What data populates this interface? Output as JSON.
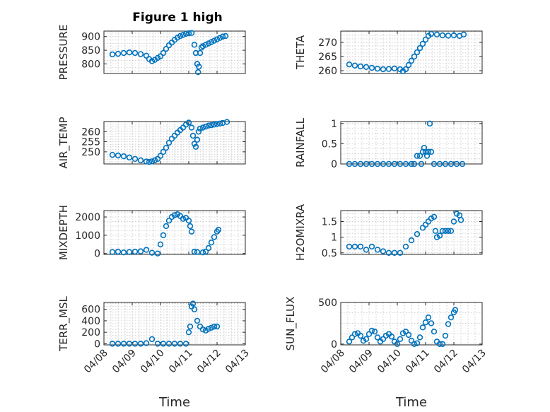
{
  "figure": {
    "title": "Figure 1 high",
    "marker_color": "#0072bd"
  },
  "chart_data": [
    {
      "type": "scatter",
      "id": "pressure",
      "ylabel": "PRESSURE",
      "xlabel": "",
      "ylim": [
        765,
        920
      ],
      "yticks": [
        800,
        850,
        900
      ],
      "xlim": [
        "04/08",
        "04/13"
      ],
      "xticks": [
        "04/08",
        "04/09",
        "04/10",
        "04/11",
        "04/12",
        "04/13"
      ],
      "xticklabels_visible": false,
      "grid": true,
      "points": [
        [
          8.3,
          835
        ],
        [
          8.5,
          837
        ],
        [
          8.7,
          840
        ],
        [
          8.9,
          842
        ],
        [
          9.1,
          840
        ],
        [
          9.3,
          836
        ],
        [
          9.5,
          830
        ],
        [
          9.6,
          818
        ],
        [
          9.7,
          810
        ],
        [
          9.8,
          815
        ],
        [
          9.9,
          822
        ],
        [
          10.0,
          828
        ],
        [
          10.1,
          840
        ],
        [
          10.2,
          855
        ],
        [
          10.3,
          868
        ],
        [
          10.4,
          878
        ],
        [
          10.5,
          888
        ],
        [
          10.6,
          896
        ],
        [
          10.7,
          902
        ],
        [
          10.8,
          906
        ],
        [
          10.9,
          910
        ],
        [
          11.0,
          912
        ],
        [
          11.1,
          913
        ],
        [
          11.2,
          870
        ],
        [
          11.25,
          840
        ],
        [
          11.3,
          800
        ],
        [
          11.33,
          770
        ],
        [
          11.36,
          790
        ],
        [
          11.4,
          840
        ],
        [
          11.45,
          860
        ],
        [
          11.5,
          865
        ],
        [
          11.6,
          870
        ],
        [
          11.7,
          875
        ],
        [
          11.8,
          880
        ],
        [
          11.9,
          885
        ],
        [
          12.0,
          890
        ],
        [
          12.1,
          895
        ],
        [
          12.2,
          900
        ],
        [
          12.3,
          902
        ]
      ]
    },
    {
      "type": "scatter",
      "id": "theta",
      "ylabel": "THETA",
      "xlabel": "",
      "ylim": [
        259,
        274
      ],
      "yticks": [
        260,
        265,
        270
      ],
      "xlim": [
        "04/08",
        "04/13"
      ],
      "xticks": [
        "04/08",
        "04/09",
        "04/10",
        "04/11",
        "04/12",
        "04/13"
      ],
      "xticklabels_visible": false,
      "grid": true,
      "points": [
        [
          8.3,
          262.2
        ],
        [
          8.5,
          261.8
        ],
        [
          8.7,
          261.5
        ],
        [
          8.9,
          261.3
        ],
        [
          9.1,
          261.0
        ],
        [
          9.3,
          260.7
        ],
        [
          9.5,
          260.5
        ],
        [
          9.7,
          260.6
        ],
        [
          9.9,
          260.8
        ],
        [
          10.1,
          260.5
        ],
        [
          10.2,
          259.8
        ],
        [
          10.3,
          260.5
        ],
        [
          10.4,
          262.0
        ],
        [
          10.5,
          263.5
        ],
        [
          10.6,
          265.0
        ],
        [
          10.7,
          266.5
        ],
        [
          10.8,
          268.0
        ],
        [
          10.9,
          269.5
        ],
        [
          11.0,
          271.0
        ],
        [
          11.1,
          272.3
        ],
        [
          11.2,
          273.0
        ],
        [
          11.4,
          272.8
        ],
        [
          11.6,
          272.5
        ],
        [
          11.8,
          272.4
        ],
        [
          12.0,
          272.5
        ],
        [
          12.2,
          272.3
        ],
        [
          12.35,
          272.8
        ]
      ]
    },
    {
      "type": "scatter",
      "id": "air_temp",
      "ylabel": "AIR_TEMP",
      "xlabel": "",
      "ylim": [
        244,
        265
      ],
      "yticks": [
        250,
        255,
        260
      ],
      "xlim": [
        "04/08",
        "04/13"
      ],
      "xticks": [
        "04/08",
        "04/09",
        "04/10",
        "04/11",
        "04/12",
        "04/13"
      ],
      "xticklabels_visible": false,
      "grid": true,
      "points": [
        [
          8.3,
          248.5
        ],
        [
          8.5,
          248.2
        ],
        [
          8.7,
          247.8
        ],
        [
          8.9,
          247.2
        ],
        [
          9.1,
          246.5
        ],
        [
          9.3,
          245.8
        ],
        [
          9.5,
          245.2
        ],
        [
          9.6,
          245.0
        ],
        [
          9.7,
          245.3
        ],
        [
          9.8,
          245.8
        ],
        [
          9.9,
          246.5
        ],
        [
          10.0,
          248.0
        ],
        [
          10.1,
          250.0
        ],
        [
          10.2,
          252.0
        ],
        [
          10.3,
          254.5
        ],
        [
          10.4,
          256.5
        ],
        [
          10.5,
          258.0
        ],
        [
          10.6,
          259.5
        ],
        [
          10.7,
          260.8
        ],
        [
          10.8,
          262.0
        ],
        [
          10.9,
          263.5
        ],
        [
          11.0,
          264.5
        ],
        [
          11.1,
          262.0
        ],
        [
          11.15,
          258.0
        ],
        [
          11.2,
          254.0
        ],
        [
          11.25,
          252.5
        ],
        [
          11.3,
          256.0
        ],
        [
          11.35,
          260.0
        ],
        [
          11.4,
          261.5
        ],
        [
          11.5,
          262.0
        ],
        [
          11.6,
          262.5
        ],
        [
          11.7,
          263.0
        ],
        [
          11.8,
          263.2
        ],
        [
          11.9,
          263.5
        ],
        [
          12.0,
          263.8
        ],
        [
          12.1,
          264.0
        ],
        [
          12.2,
          264.3
        ],
        [
          12.35,
          264.8
        ]
      ]
    },
    {
      "type": "scatter",
      "id": "rainfall",
      "ylabel": "RAINFALL",
      "xlabel": "",
      "ylim": [
        0,
        1.05
      ],
      "yticks": [
        0,
        0.5,
        1
      ],
      "xlim": [
        "04/08",
        "04/13"
      ],
      "xticks": [
        "04/08",
        "04/09",
        "04/10",
        "04/11",
        "04/12",
        "04/13"
      ],
      "xticklabels_visible": false,
      "grid": true,
      "points": [
        [
          8.3,
          0
        ],
        [
          8.5,
          0
        ],
        [
          8.7,
          0
        ],
        [
          8.9,
          0
        ],
        [
          9.1,
          0
        ],
        [
          9.3,
          0
        ],
        [
          9.5,
          0
        ],
        [
          9.7,
          0
        ],
        [
          9.9,
          0
        ],
        [
          10.1,
          0
        ],
        [
          10.3,
          0
        ],
        [
          10.5,
          0
        ],
        [
          10.6,
          0
        ],
        [
          10.7,
          0.2
        ],
        [
          10.8,
          0.2
        ],
        [
          10.85,
          0
        ],
        [
          10.9,
          0.3
        ],
        [
          10.95,
          0.4
        ],
        [
          11.0,
          0.3
        ],
        [
          11.05,
          0.2
        ],
        [
          11.1,
          0.3
        ],
        [
          11.15,
          1.0
        ],
        [
          11.2,
          0.3
        ],
        [
          11.3,
          0
        ],
        [
          11.5,
          0
        ],
        [
          11.7,
          0
        ],
        [
          11.9,
          0
        ],
        [
          12.1,
          0
        ],
        [
          12.3,
          0
        ]
      ]
    },
    {
      "type": "scatter",
      "id": "mixdepth",
      "ylabel": "MIXDEPTH",
      "xlabel": "",
      "ylim": [
        -50,
        2350
      ],
      "yticks": [
        0,
        1000,
        2000
      ],
      "xlim": [
        "04/08",
        "04/13"
      ],
      "xticks": [
        "04/08",
        "04/09",
        "04/10",
        "04/11",
        "04/12",
        "04/13"
      ],
      "xticklabels_visible": false,
      "grid": true,
      "points": [
        [
          8.3,
          80
        ],
        [
          8.5,
          100
        ],
        [
          8.7,
          60
        ],
        [
          8.9,
          80
        ],
        [
          9.1,
          100
        ],
        [
          9.3,
          120
        ],
        [
          9.5,
          200
        ],
        [
          9.7,
          40
        ],
        [
          9.9,
          0
        ],
        [
          10.0,
          500
        ],
        [
          10.1,
          1000
        ],
        [
          10.2,
          1500
        ],
        [
          10.3,
          1800
        ],
        [
          10.4,
          2000
        ],
        [
          10.5,
          2100
        ],
        [
          10.6,
          2150
        ],
        [
          10.7,
          2050
        ],
        [
          10.8,
          1900
        ],
        [
          10.9,
          1950
        ],
        [
          11.0,
          1800
        ],
        [
          11.05,
          1500
        ],
        [
          11.1,
          1200
        ],
        [
          11.2,
          100
        ],
        [
          11.3,
          80
        ],
        [
          11.5,
          60
        ],
        [
          11.6,
          100
        ],
        [
          11.7,
          300
        ],
        [
          11.8,
          600
        ],
        [
          11.9,
          900
        ],
        [
          12.0,
          1200
        ],
        [
          12.05,
          1300
        ]
      ]
    },
    {
      "type": "scatter",
      "id": "h2omixra",
      "ylabel": "H2OMIXRA",
      "xlabel": "",
      "ylim": [
        0.45,
        1.85
      ],
      "yticks": [
        0.5,
        1,
        1.5
      ],
      "xlim": [
        "04/08",
        "04/13"
      ],
      "xticks": [
        "04/08",
        "04/09",
        "04/10",
        "04/11",
        "04/12",
        "04/13"
      ],
      "xticklabels_visible": false,
      "grid": true,
      "points": [
        [
          8.3,
          0.7
        ],
        [
          8.5,
          0.7
        ],
        [
          8.7,
          0.7
        ],
        [
          8.9,
          0.6
        ],
        [
          9.1,
          0.7
        ],
        [
          9.3,
          0.6
        ],
        [
          9.5,
          0.55
        ],
        [
          9.7,
          0.5
        ],
        [
          9.9,
          0.5
        ],
        [
          10.1,
          0.5
        ],
        [
          10.3,
          0.7
        ],
        [
          10.5,
          0.9
        ],
        [
          10.7,
          1.1
        ],
        [
          10.9,
          1.3
        ],
        [
          11.0,
          1.4
        ],
        [
          11.1,
          1.5
        ],
        [
          11.2,
          1.6
        ],
        [
          11.3,
          1.65
        ],
        [
          11.35,
          1.2
        ],
        [
          11.4,
          1.0
        ],
        [
          11.5,
          1.05
        ],
        [
          11.6,
          1.2
        ],
        [
          11.7,
          1.2
        ],
        [
          11.8,
          1.2
        ],
        [
          11.9,
          1.2
        ],
        [
          12.0,
          1.5
        ],
        [
          12.1,
          1.75
        ],
        [
          12.2,
          1.7
        ],
        [
          12.25,
          1.55
        ]
      ]
    },
    {
      "type": "scatter",
      "id": "terr_msl",
      "ylabel": "TERR_MSL",
      "xlabel": "Time",
      "ylim": [
        -20,
        720
      ],
      "yticks": [
        0,
        200,
        400,
        600
      ],
      "xlim": [
        "04/08",
        "04/13"
      ],
      "xticks": [
        "04/08",
        "04/09",
        "04/10",
        "04/11",
        "04/12",
        "04/13"
      ],
      "xticklabels_visible": true,
      "grid": true,
      "points": [
        [
          8.3,
          0
        ],
        [
          8.5,
          0
        ],
        [
          8.7,
          0
        ],
        [
          8.9,
          0
        ],
        [
          9.1,
          0
        ],
        [
          9.3,
          0
        ],
        [
          9.5,
          10
        ],
        [
          9.7,
          80
        ],
        [
          9.9,
          0
        ],
        [
          10.1,
          0
        ],
        [
          10.3,
          0
        ],
        [
          10.5,
          0
        ],
        [
          10.7,
          0
        ],
        [
          10.9,
          0
        ],
        [
          11.0,
          200
        ],
        [
          11.05,
          300
        ],
        [
          11.1,
          650
        ],
        [
          11.15,
          700
        ],
        [
          11.2,
          600
        ],
        [
          11.3,
          400
        ],
        [
          11.4,
          300
        ],
        [
          11.5,
          250
        ],
        [
          11.6,
          230
        ],
        [
          11.7,
          260
        ],
        [
          11.8,
          280
        ],
        [
          11.9,
          300
        ],
        [
          12.0,
          300
        ]
      ]
    },
    {
      "type": "scatter",
      "id": "sun_flux",
      "ylabel": "SUN_FLUX",
      "xlabel": "Time",
      "ylim": [
        -10,
        500
      ],
      "yticks": [
        0,
        500
      ],
      "xlim": [
        "04/08",
        "04/13"
      ],
      "xticks": [
        "04/08",
        "04/09",
        "04/10",
        "04/11",
        "04/12",
        "04/13"
      ],
      "xticklabels_visible": true,
      "grid": true,
      "points": [
        [
          8.3,
          30
        ],
        [
          8.4,
          80
        ],
        [
          8.5,
          120
        ],
        [
          8.6,
          130
        ],
        [
          8.7,
          100
        ],
        [
          8.8,
          40
        ],
        [
          8.9,
          60
        ],
        [
          9.0,
          120
        ],
        [
          9.1,
          160
        ],
        [
          9.2,
          150
        ],
        [
          9.3,
          80
        ],
        [
          9.4,
          30
        ],
        [
          9.5,
          60
        ],
        [
          9.6,
          100
        ],
        [
          9.7,
          120
        ],
        [
          9.8,
          90
        ],
        [
          9.9,
          30
        ],
        [
          10.0,
          0
        ],
        [
          10.1,
          60
        ],
        [
          10.2,
          130
        ],
        [
          10.3,
          150
        ],
        [
          10.4,
          110
        ],
        [
          10.5,
          40
        ],
        [
          10.6,
          0
        ],
        [
          10.7,
          10
        ],
        [
          10.8,
          80
        ],
        [
          10.9,
          200
        ],
        [
          11.0,
          260
        ],
        [
          11.1,
          320
        ],
        [
          11.2,
          250
        ],
        [
          11.3,
          150
        ],
        [
          11.4,
          30
        ],
        [
          11.5,
          0
        ],
        [
          11.6,
          0
        ],
        [
          11.7,
          100
        ],
        [
          11.8,
          240
        ],
        [
          11.9,
          320
        ],
        [
          12.0,
          380
        ],
        [
          12.05,
          410
        ]
      ]
    }
  ]
}
